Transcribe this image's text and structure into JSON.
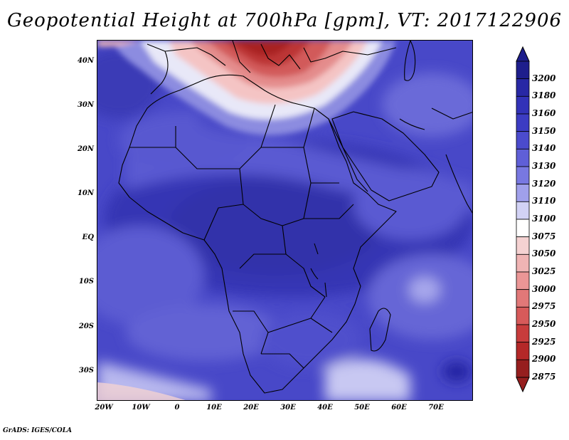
{
  "map": {
    "title": "Geopotential Height at 700hPa [gpm], VT: 2017122906",
    "lat_labels": [
      "40N",
      "30N",
      "20N",
      "10N",
      "EQ",
      "10S",
      "20S",
      "30S"
    ],
    "lon_labels": [
      "20W",
      "10W",
      "0",
      "10E",
      "20E",
      "30E",
      "40E",
      "50E",
      "60E",
      "70E"
    ],
    "extent": {
      "lon": [
        -22,
        80
      ],
      "lat": [
        -37,
        45
      ]
    },
    "colorbar": {
      "levels": [
        "3200",
        "3180",
        "3160",
        "3150",
        "3140",
        "3130",
        "3120",
        "3110",
        "3100",
        "3075",
        "3050",
        "3025",
        "3000",
        "2975",
        "2950",
        "2925",
        "2900",
        "2875"
      ],
      "colors": [
        "#1e1e8c",
        "#2828a5",
        "#3232b8",
        "#3c3cc3",
        "#4b4bcd",
        "#5f5fd7",
        "#7878e1",
        "#a0a0eb",
        "#d2d2f5",
        "#ffffff",
        "#f5d2d2",
        "#f0b4b4",
        "#eb9696",
        "#e17878",
        "#d75a5a",
        "#c83c3c",
        "#b42828",
        "#961e1e"
      ]
    },
    "footer": "GrADS: IGES/COLA"
  }
}
